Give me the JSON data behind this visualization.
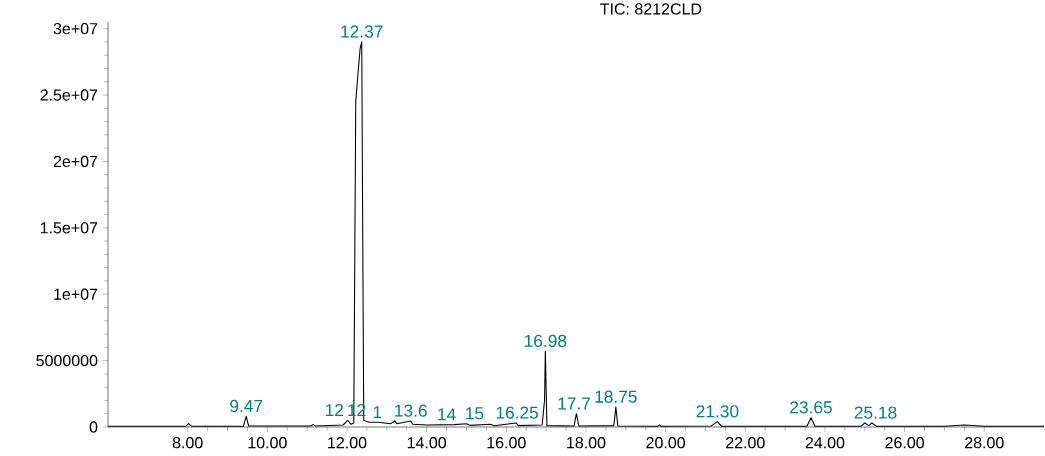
{
  "chart_data": {
    "type": "line",
    "title": "TIC: 8212CLD",
    "x": [
      6.0,
      7.95,
      8.02,
      8.1,
      9.4,
      9.47,
      9.53,
      11.1,
      11.15,
      11.2,
      11.9,
      12.02,
      12.1,
      12.17,
      12.22,
      12.26,
      12.33,
      12.37,
      12.42,
      12.55,
      12.76,
      13.1,
      13.2,
      13.25,
      13.6,
      13.65,
      14.0,
      14.7,
      15.0,
      15.1,
      15.6,
      15.7,
      16.25,
      16.3,
      16.9,
      16.96,
      16.98,
      17.02,
      17.7,
      17.76,
      17.82,
      18.7,
      18.75,
      18.8,
      19.8,
      19.85,
      19.9,
      21.15,
      21.3,
      21.4,
      23.55,
      23.65,
      23.75,
      24.9,
      25.0,
      25.1,
      25.18,
      25.3,
      27.0,
      27.5,
      28.0,
      29.5
    ],
    "series": [
      {
        "color": "#000000",
        "values": [
          50000,
          50000,
          250000,
          60000,
          60000,
          800000,
          80000,
          80000,
          200000,
          80000,
          150000,
          500000,
          200000,
          300000,
          24500000,
          26000000,
          28500000,
          29000000,
          500000,
          350000,
          350000,
          250000,
          450000,
          250000,
          450000,
          200000,
          150000,
          180000,
          250000,
          120000,
          200000,
          100000,
          300000,
          100000,
          150000,
          2000000,
          5700000,
          100000,
          80000,
          1000000,
          80000,
          100000,
          1500000,
          80000,
          60000,
          150000,
          60000,
          80000,
          400000,
          60000,
          60000,
          700000,
          60000,
          50000,
          300000,
          100000,
          300000,
          50000,
          50000,
          150000,
          50000,
          50000
        ]
      }
    ],
    "xlim": [
      6.0,
      29.5
    ],
    "ylim": [
      0,
      30500000
    ],
    "xticks": [
      {
        "value": 8,
        "label": "8.00"
      },
      {
        "value": 10,
        "label": "10.00"
      },
      {
        "value": 12,
        "label": "12.00"
      },
      {
        "value": 14,
        "label": "14.00"
      },
      {
        "value": 16,
        "label": "16.00"
      },
      {
        "value": 18,
        "label": "18.00"
      },
      {
        "value": 20,
        "label": "20.00"
      },
      {
        "value": 22,
        "label": "22.00"
      },
      {
        "value": 24,
        "label": "24.00"
      },
      {
        "value": 26,
        "label": "26.00"
      },
      {
        "value": 28,
        "label": "28.00"
      }
    ],
    "yticks": [
      0,
      5000000,
      {
        "value": 10000000,
        "label": "1e+07"
      },
      {
        "value": 15000000,
        "label": "1.5e+07"
      },
      {
        "value": 20000000,
        "label": "2e+07"
      },
      {
        "value": 25000000,
        "label": "2.5e+07"
      },
      {
        "value": 30000000,
        "label": "3e+07"
      }
    ],
    "annotations": [
      {
        "text": "9.47",
        "x": 9.47,
        "y": 800000
      },
      {
        "text": "12",
        "x": 11.68,
        "y": 500000
      },
      {
        "text": "12",
        "x": 12.24,
        "y": 500000
      },
      {
        "text": "1",
        "x": 12.76,
        "y": 350000
      },
      {
        "text": "13.6",
        "x": 13.6,
        "y": 450000
      },
      {
        "text": "14",
        "x": 14.5,
        "y": 180000
      },
      {
        "text": "15",
        "x": 15.2,
        "y": 250000
      },
      {
        "text": "16.25",
        "x": 16.27,
        "y": 300000
      },
      {
        "text": "12.37",
        "x": 12.37,
        "y": 29000000
      },
      {
        "text": "16.98",
        "x": 16.98,
        "y": 5700000
      },
      {
        "text": "17.7",
        "x": 17.7,
        "y": 1000000
      },
      {
        "text": "18.75",
        "x": 18.75,
        "y": 1500000
      },
      {
        "text": "21.30",
        "x": 21.3,
        "y": 400000
      },
      {
        "text": "23.65",
        "x": 23.65,
        "y": 700000
      },
      {
        "text": "25.18",
        "x": 25.27,
        "y": 300000
      }
    ]
  }
}
